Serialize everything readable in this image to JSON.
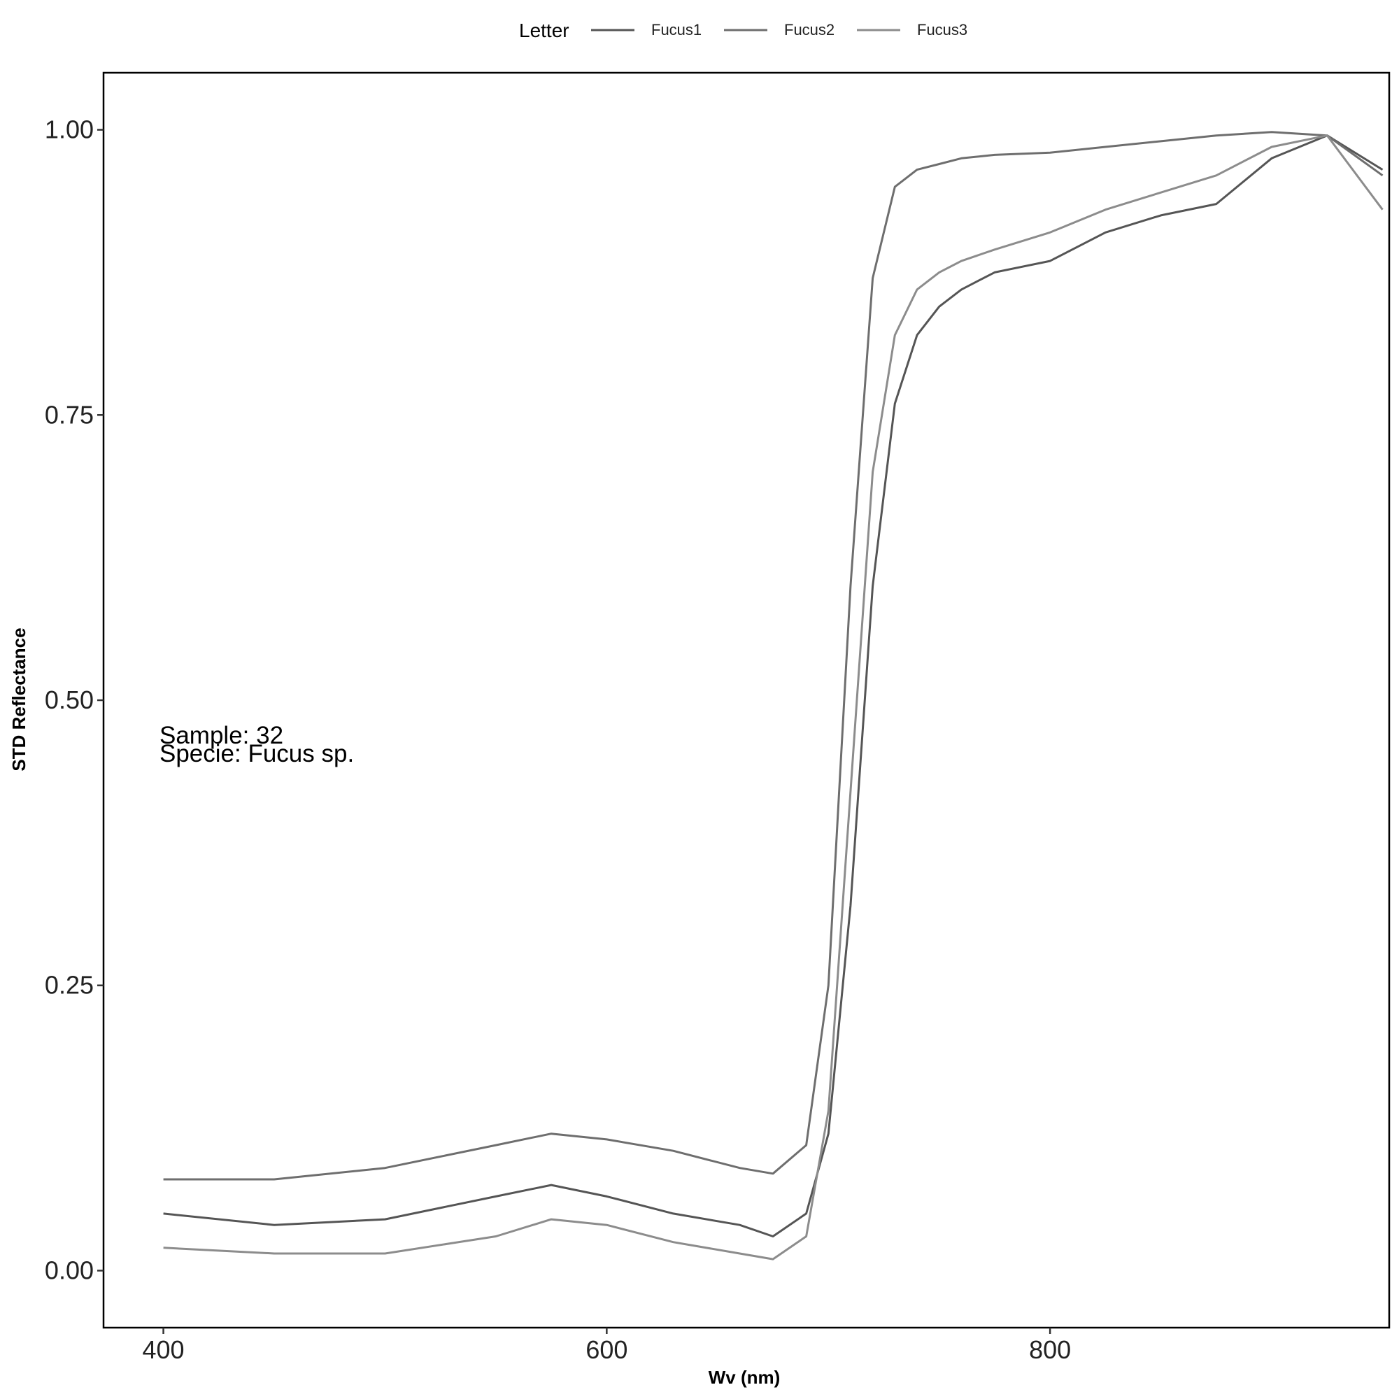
{
  "chart_data": {
    "type": "line",
    "title": "",
    "xlabel": "Wv (nm)",
    "ylabel": "STD Reflectance",
    "xlim": [
      373,
      953
    ],
    "ylim": [
      -0.05,
      1.05
    ],
    "x_ticks": [
      400,
      600,
      800
    ],
    "x_tick_labels": [
      "400",
      "600",
      "800"
    ],
    "y_ticks": [
      0,
      0.25,
      0.5,
      0.75,
      1.0
    ],
    "y_tick_labels": [
      "0.00",
      "0.25",
      "0.50",
      "0.75",
      "1.00"
    ],
    "grid": false,
    "legend": {
      "title": "Letter",
      "position": "top",
      "entries": [
        {
          "name": "Fucus1",
          "color": "#555555"
        },
        {
          "name": "Fucus2",
          "color": "#6e6e6e"
        },
        {
          "name": "Fucus3",
          "color": "#8c8c8c"
        }
      ]
    },
    "annotations": [
      "Sample: 32",
      "Specie: Fucus sp."
    ],
    "series": [
      {
        "name": "Fucus1",
        "color": "#555555",
        "x": [
          400,
          450,
          500,
          550,
          575,
          600,
          630,
          660,
          675,
          690,
          700,
          710,
          720,
          730,
          740,
          750,
          760,
          775,
          800,
          825,
          850,
          875,
          900,
          925,
          950
        ],
        "values": [
          0.05,
          0.04,
          0.045,
          0.065,
          0.075,
          0.065,
          0.05,
          0.04,
          0.03,
          0.05,
          0.12,
          0.32,
          0.6,
          0.76,
          0.82,
          0.845,
          0.86,
          0.875,
          0.885,
          0.91,
          0.925,
          0.935,
          0.975,
          0.995,
          0.965
        ]
      },
      {
        "name": "Fucus2",
        "color": "#6e6e6e",
        "x": [
          400,
          450,
          500,
          550,
          575,
          600,
          630,
          660,
          675,
          690,
          700,
          710,
          720,
          730,
          740,
          750,
          760,
          775,
          800,
          825,
          850,
          875,
          900,
          925,
          950
        ],
        "values": [
          0.08,
          0.08,
          0.09,
          0.11,
          0.12,
          0.115,
          0.105,
          0.09,
          0.085,
          0.11,
          0.25,
          0.6,
          0.87,
          0.95,
          0.965,
          0.97,
          0.975,
          0.978,
          0.98,
          0.985,
          0.99,
          0.995,
          0.998,
          0.995,
          0.96
        ]
      },
      {
        "name": "Fucus3",
        "color": "#8c8c8c",
        "x": [
          400,
          450,
          500,
          550,
          575,
          600,
          630,
          660,
          675,
          690,
          700,
          710,
          720,
          730,
          740,
          750,
          760,
          775,
          800,
          825,
          850,
          875,
          900,
          925,
          950
        ],
        "values": [
          0.02,
          0.015,
          0.015,
          0.03,
          0.045,
          0.04,
          0.025,
          0.015,
          0.01,
          0.03,
          0.14,
          0.42,
          0.7,
          0.82,
          0.86,
          0.875,
          0.885,
          0.895,
          0.91,
          0.93,
          0.945,
          0.96,
          0.985,
          0.995,
          0.93
        ]
      }
    ]
  }
}
